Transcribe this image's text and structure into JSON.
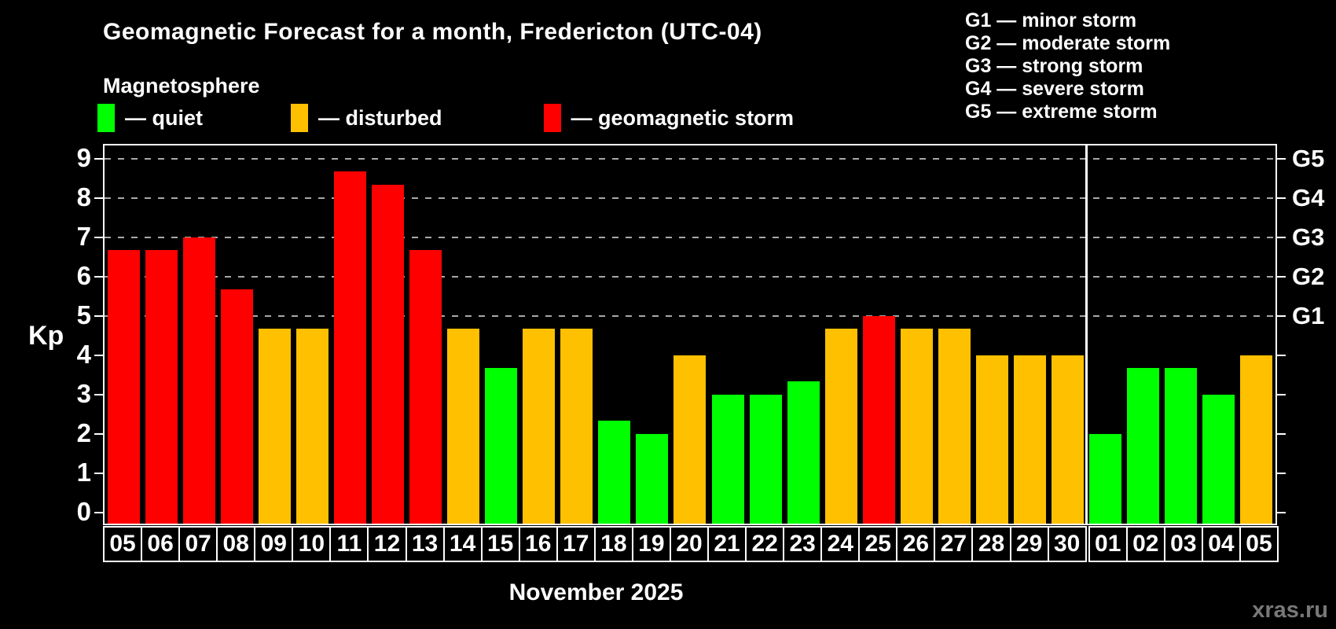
{
  "header": {
    "subtitle": "Magnetosphere"
  },
  "legend": {
    "items": [
      {
        "label": "— quiet",
        "status": "quiet"
      },
      {
        "label": "— disturbed",
        "status": "disturbed"
      },
      {
        "label": "— geomagnetic storm",
        "status": "storm"
      }
    ]
  },
  "g_legend": [
    "G1 — minor storm",
    "G2 — moderate storm",
    "G3 — strong storm",
    "G4 — severe storm",
    "G5 — extreme storm"
  ],
  "colors": {
    "quiet": "#00ff00",
    "disturbed": "#ffc000",
    "storm": "#ff0000",
    "axis": "#ffffff",
    "grid": "#a8a8a8",
    "background": "#000000",
    "watermark": "#787878"
  },
  "footer": {
    "watermark": "xras.ru"
  },
  "chart_data": {
    "type": "bar",
    "title": "Geomagnetic Forecast for a month, Fredericton (UTC-04)",
    "xlabel": "November 2025",
    "ylabel": "Kp",
    "ylim": [
      -0.29,
      9.33
    ],
    "y_ticks": [
      0,
      1,
      2,
      3,
      4,
      5,
      6,
      7,
      8,
      9
    ],
    "grid_levels": [
      5,
      6,
      7,
      8,
      9
    ],
    "right_axis_labels": [
      {
        "kp": 9,
        "label": "G5"
      },
      {
        "kp": 8,
        "label": "G4"
      },
      {
        "kp": 7,
        "label": "G3"
      },
      {
        "kp": 6,
        "label": "G2"
      },
      {
        "kp": 5,
        "label": "G1"
      }
    ],
    "legend_position": "top-left",
    "grid": "dashed horizontal at storm levels only",
    "month_boundary_index": 26,
    "categories": [
      "05",
      "06",
      "07",
      "08",
      "09",
      "10",
      "11",
      "12",
      "13",
      "14",
      "15",
      "16",
      "17",
      "18",
      "19",
      "20",
      "21",
      "22",
      "23",
      "24",
      "25",
      "26",
      "27",
      "28",
      "29",
      "30",
      "01",
      "02",
      "03",
      "04",
      "05"
    ],
    "values": [
      6.67,
      6.67,
      7.0,
      5.67,
      4.67,
      4.67,
      8.67,
      8.33,
      6.67,
      4.67,
      3.67,
      4.67,
      4.67,
      2.33,
      2.0,
      4.0,
      3.0,
      3.0,
      3.33,
      4.67,
      5.0,
      4.67,
      4.67,
      4.0,
      4.0,
      4.0,
      2.0,
      3.67,
      3.67,
      3.0,
      4.0
    ],
    "statuses": [
      "storm",
      "storm",
      "storm",
      "storm",
      "disturbed",
      "disturbed",
      "storm",
      "storm",
      "storm",
      "disturbed",
      "quiet",
      "disturbed",
      "disturbed",
      "quiet",
      "quiet",
      "disturbed",
      "quiet",
      "quiet",
      "quiet",
      "disturbed",
      "storm",
      "disturbed",
      "disturbed",
      "disturbed",
      "disturbed",
      "disturbed",
      "quiet",
      "quiet",
      "quiet",
      "quiet",
      "disturbed"
    ]
  }
}
